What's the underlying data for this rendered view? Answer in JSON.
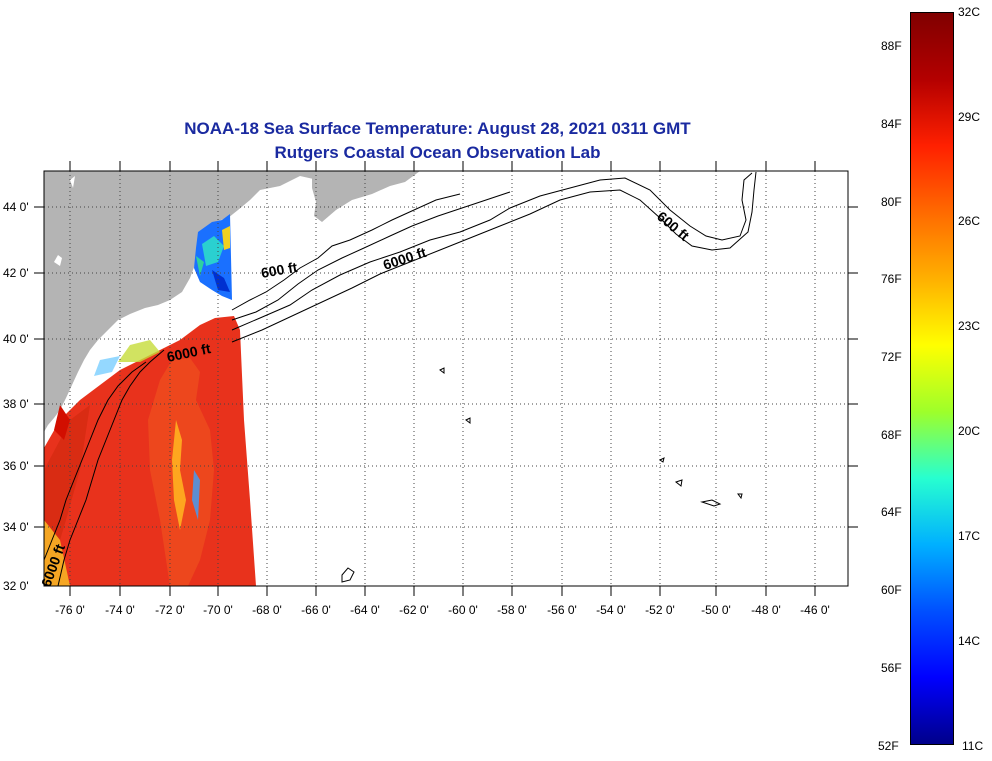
{
  "title": {
    "line1": "NOAA-18 Sea Surface Temperature:  August 28, 2021 0311 GMT",
    "line2": "Rutgers Coastal Ocean Observation Lab"
  },
  "map": {
    "lon_ticks": [
      "-76 0'",
      "-74 0'",
      "-72 0'",
      "-70 0'",
      "-68 0'",
      "-66 0'",
      "-64 0'",
      "-62 0'",
      "-60 0'",
      "-58 0'",
      "-56 0'",
      "-54 0'",
      "-52 0'",
      "-50 0'",
      "-48 0'",
      "-46 0'"
    ],
    "lat_ticks": [
      "44 0'",
      "42 0'",
      "40 0'",
      "38 0'",
      "36 0'",
      "34 0'",
      "32 0'"
    ],
    "contour_labels": [
      "600 ft",
      "6000 ft",
      "6000 ft",
      "600 ft",
      "6000 ft"
    ],
    "land_color": "#b4b4b4",
    "sst_warm_color": "#e8321c"
  },
  "colorbar": {
    "celsius_labels": [
      "32C",
      "29C",
      "26C",
      "23C",
      "20C",
      "17C",
      "14C",
      "11C"
    ],
    "fahrenheit_labels": [
      "88F",
      "84F",
      "80F",
      "76F",
      "72F",
      "68F",
      "64F",
      "60F",
      "56F",
      "52F"
    ],
    "gradient_colors": [
      "#800000",
      "#b40000",
      "#ff2000",
      "#ff6a00",
      "#ffb000",
      "#ffff00",
      "#9eff2a",
      "#27ffd0",
      "#00b0ff",
      "#0050ff",
      "#0000ff",
      "#00008a"
    ]
  }
}
